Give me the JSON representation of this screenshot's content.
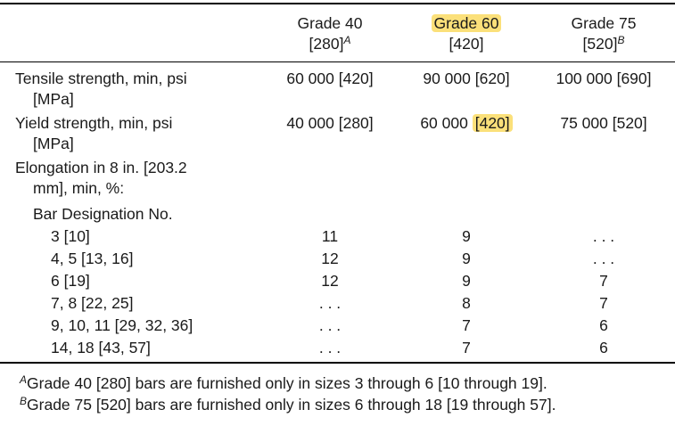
{
  "header": {
    "grade40": {
      "name": "Grade 40",
      "value": "[280]",
      "note": "A"
    },
    "grade60": {
      "name": "Grade 60",
      "value": "[420]"
    },
    "grade75": {
      "name": "Grade 75",
      "value": "[520]",
      "note": "B"
    }
  },
  "rows": {
    "tensile": {
      "label1": "Tensile strength, min, psi",
      "label2": "[MPa]",
      "g40": "60 000 [420]",
      "g60": "90 000 [620]",
      "g75": "100 000 [690]"
    },
    "yield": {
      "label1": "Yield strength, min, psi",
      "label2": "[MPa]",
      "g40": "40 000 [280]",
      "g60_main": "60 000 ",
      "g60_hl": "[420]",
      "g75": "75 000 [520]"
    },
    "elongation": {
      "label1": "Elongation in 8 in. [203.2",
      "label2": "mm], min, %:"
    },
    "bar_designation": "Bar Designation No.",
    "bars": [
      {
        "size": "3 [10]",
        "g40": "11",
        "g60": "9",
        "g75": ". . ."
      },
      {
        "size": "4, 5 [13, 16]",
        "g40": "12",
        "g60": "9",
        "g75": ". . ."
      },
      {
        "size": "6 [19]",
        "g40": "12",
        "g60": "9",
        "g75": "7"
      },
      {
        "size": "7, 8 [22, 25]",
        "g40": ". . .",
        "g60": "8",
        "g75": "7"
      },
      {
        "size": "9, 10, 11 [29, 32, 36]",
        "g40": ". . .",
        "g60": "7",
        "g75": "6"
      },
      {
        "size": "14, 18 [43, 57]",
        "g40": ". . .",
        "g60": "7",
        "g75": "6"
      }
    ]
  },
  "footnotes": {
    "a_mark": "A",
    "a_text": "Grade 40 [280] bars are furnished only in sizes 3 through 6 [10 through 19].",
    "b_mark": "B",
    "b_text": "Grade 75 [520] bars are furnished only in sizes 6 through 18 [19 through 57]."
  },
  "colors": {
    "highlight": "#fbe07a",
    "text": "#1a1a1a",
    "rule": "#000000"
  }
}
